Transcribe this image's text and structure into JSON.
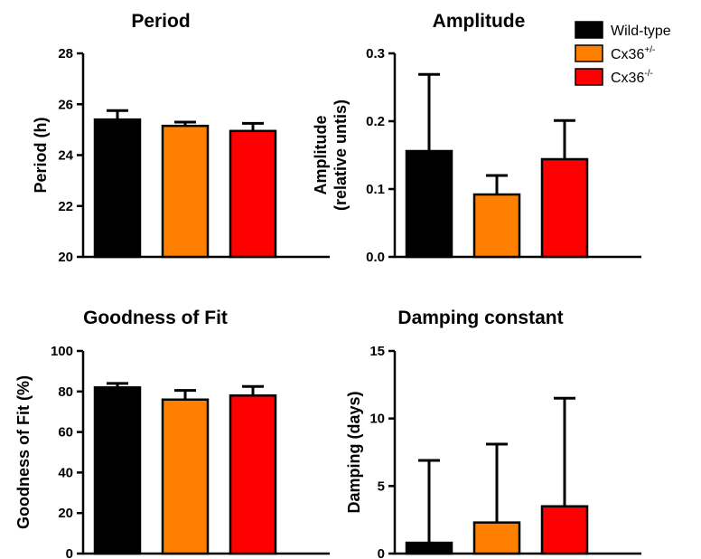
{
  "legend": {
    "entries": [
      {
        "label": "Wild-type",
        "sup": "",
        "color": "#000000"
      },
      {
        "label": "Cx36",
        "sup": "+/-",
        "color": "#FF8000"
      },
      {
        "label": "Cx36",
        "sup": "-/-",
        "color": "#FF0000"
      }
    ]
  },
  "chart_data": [
    {
      "type": "bar",
      "title": "Period",
      "ylabel_lines": [
        "Period (h)"
      ],
      "categories": [
        "Wild-type",
        "Cx36+/-",
        "Cx36-/-"
      ],
      "values": [
        25.4,
        25.15,
        24.95
      ],
      "errors": [
        0.35,
        0.15,
        0.3
      ],
      "ylim": [
        20,
        28
      ],
      "yticks": [
        20,
        22,
        24,
        26,
        28
      ],
      "ytick_labels": [
        "20",
        "22",
        "24",
        "26",
        "28"
      ],
      "colors": [
        "#000000",
        "#FF8000",
        "#FF0000"
      ]
    },
    {
      "type": "bar",
      "title": "Amplitude",
      "ylabel_lines": [
        "Amplitude",
        "(relative untis)"
      ],
      "categories": [
        "Wild-type",
        "Cx36+/-",
        "Cx36-/-"
      ],
      "values": [
        0.156,
        0.092,
        0.144
      ],
      "errors": [
        0.113,
        0.028,
        0.057
      ],
      "ylim": [
        0,
        0.3
      ],
      "yticks": [
        0,
        0.1,
        0.2,
        0.3
      ],
      "ytick_labels": [
        "0.0",
        "0.1",
        "0.2",
        "0.3"
      ],
      "colors": [
        "#000000",
        "#FF8000",
        "#FF0000"
      ]
    },
    {
      "type": "bar",
      "title": "Goodness of Fit",
      "ylabel_lines": [
        "Goodness of Fit (%)"
      ],
      "categories": [
        "Wild-type",
        "Cx36+/-",
        "Cx36-/-"
      ],
      "values": [
        82,
        76,
        78
      ],
      "errors": [
        2,
        4.5,
        4.5
      ],
      "ylim": [
        0,
        100
      ],
      "yticks": [
        0,
        20,
        40,
        60,
        80,
        100
      ],
      "ytick_labels": [
        "0",
        "20",
        "40",
        "60",
        "80",
        "100"
      ],
      "colors": [
        "#000000",
        "#FF8000",
        "#FF0000"
      ]
    },
    {
      "type": "bar",
      "title": "Damping constant",
      "ylabel_lines": [
        "Damping (days)"
      ],
      "categories": [
        "Wild-type",
        "Cx36+/-",
        "Cx36-/-"
      ],
      "values": [
        0.8,
        2.3,
        3.5
      ],
      "errors": [
        6.1,
        5.8,
        8.0
      ],
      "ylim": [
        0,
        15
      ],
      "yticks": [
        0,
        5,
        10,
        15
      ],
      "ytick_labels": [
        "0",
        "5",
        "10",
        "15"
      ],
      "colors": [
        "#000000",
        "#FF8000",
        "#FF0000"
      ]
    }
  ]
}
